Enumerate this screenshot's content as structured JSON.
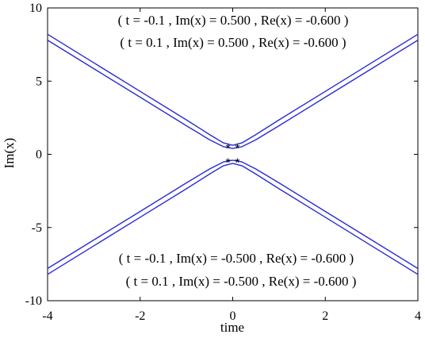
{
  "chart_data": {
    "type": "line",
    "xlabel": "time",
    "ylabel": "Im(x)",
    "xlim": [
      -4,
      4
    ],
    "ylim": [
      -10,
      10
    ],
    "x_ticks": [
      -4,
      -2,
      0,
      2,
      4
    ],
    "y_ticks": [
      -10,
      -5,
      0,
      5,
      10
    ],
    "grid": false,
    "line_color": "#2b2bd6",
    "series": [
      {
        "x": [
          -4,
          -3,
          -2,
          -1,
          -0.5,
          -0.2,
          0,
          0.2,
          0.5,
          1,
          2,
          3,
          4
        ],
        "y": [
          8.2,
          6.25,
          4.3,
          2.35,
          1.35,
          0.78,
          0.62,
          0.78,
          1.35,
          2.35,
          4.3,
          6.25,
          8.2
        ]
      },
      {
        "x": [
          -4,
          -3,
          -2,
          -1,
          -0.5,
          -0.2,
          0,
          0.2,
          0.5,
          1,
          2,
          3,
          4
        ],
        "y": [
          7.8,
          5.85,
          3.9,
          1.95,
          1.0,
          0.52,
          0.4,
          0.52,
          1.0,
          1.95,
          3.9,
          5.85,
          7.8
        ]
      },
      {
        "x": [
          -4,
          -3,
          -2,
          -1,
          -0.5,
          -0.2,
          0,
          0.2,
          0.5,
          1,
          2,
          3,
          4
        ],
        "y": [
          -7.8,
          -5.85,
          -3.9,
          -1.95,
          -1.0,
          -0.52,
          -0.4,
          -0.52,
          -1.0,
          -1.95,
          -3.9,
          -5.85,
          -7.8
        ]
      },
      {
        "x": [
          -4,
          -3,
          -2,
          -1,
          -0.5,
          -0.2,
          0,
          0.2,
          0.5,
          1,
          2,
          3,
          4
        ],
        "y": [
          -8.2,
          -6.25,
          -4.3,
          -2.35,
          -1.35,
          -0.78,
          -0.62,
          -0.78,
          -1.35,
          -2.35,
          -4.3,
          -6.25,
          -8.2
        ]
      }
    ],
    "markers": [
      {
        "x": -0.1,
        "y": 0.5,
        "symbol": "*"
      },
      {
        "x": 0.1,
        "y": 0.5,
        "symbol": "*"
      },
      {
        "x": -0.1,
        "y": -0.5,
        "symbol": "*"
      },
      {
        "x": 0.1,
        "y": -0.5,
        "symbol": "*"
      }
    ],
    "annotations": [
      "( t = -0.1 , Im(x) = 0.500 , Re(x) = -0.600 )",
      "( t = 0.1 , Im(x) = 0.500 , Re(x) = -0.600 )",
      "( t = -0.1 , Im(x) = -0.500 , Re(x) = -0.600 )",
      "( t = 0.1 , Im(x) = -0.500 , Re(x) = -0.600 )"
    ]
  }
}
